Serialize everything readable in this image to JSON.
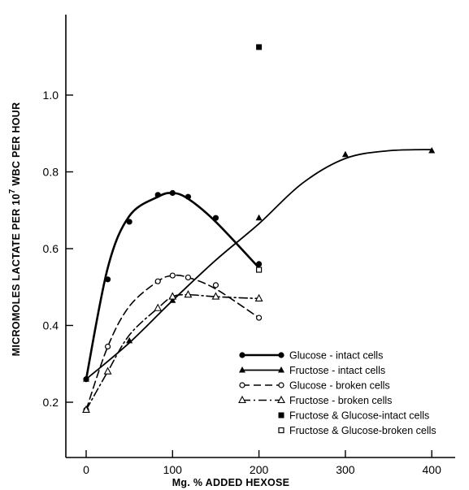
{
  "chart_data": {
    "type": "line",
    "title": "",
    "xlabel": "Mg. % ADDED HEXOSE",
    "ylabel": "MICROMOLES LACTATE PER 10",
    "ylabel_superscript": "7",
    "ylabel_tail": " WBC PER HOUR",
    "xlim": [
      -15,
      440
    ],
    "ylim": [
      0.13,
      1.15
    ],
    "x_ticks": [
      0,
      100,
      200,
      300,
      400
    ],
    "y_ticks": [
      0.2,
      0.4,
      0.6,
      0.8,
      1.0
    ],
    "x_tick_labels": [
      "0",
      "100",
      "200",
      "300",
      "400"
    ],
    "y_tick_labels": [
      "0.2",
      "0.4",
      "0.6",
      "0.8",
      "1.0"
    ],
    "grid": false,
    "legend_position": "bottom-right",
    "series": [
      {
        "name": "Glucose - intact cells",
        "marker": "filled-circle",
        "line": "solid-bold",
        "x": [
          0,
          25,
          50,
          83,
          100,
          118,
          150,
          200
        ],
        "y": [
          0.26,
          0.52,
          0.67,
          0.74,
          0.745,
          0.735,
          0.68,
          0.56
        ],
        "curve_x": [
          0,
          25,
          50,
          83,
          100,
          118,
          150,
          200
        ],
        "curve_y": [
          0.26,
          0.55,
          0.685,
          0.735,
          0.745,
          0.73,
          0.67,
          0.55
        ]
      },
      {
        "name": "Fructose - intact cells",
        "marker": "filled-triangle",
        "line": "solid",
        "x": [
          0,
          50,
          100,
          200,
          300,
          400
        ],
        "y": [
          0.26,
          0.36,
          0.465,
          0.68,
          0.845,
          0.855
        ],
        "curve_x": [
          0,
          50,
          100,
          150,
          200,
          250,
          300,
          350,
          400
        ],
        "curve_y": [
          0.26,
          0.355,
          0.465,
          0.57,
          0.665,
          0.77,
          0.835,
          0.855,
          0.858
        ]
      },
      {
        "name": "Glucose - broken cells",
        "marker": "open-circle",
        "line": "dashed",
        "x": [
          0,
          25,
          83,
          100,
          118,
          150,
          200
        ],
        "y": [
          0.18,
          0.345,
          0.515,
          0.53,
          0.525,
          0.505,
          0.42
        ],
        "curve_x": [
          0,
          25,
          50,
          83,
          100,
          118,
          150,
          200
        ],
        "curve_y": [
          0.18,
          0.345,
          0.45,
          0.515,
          0.53,
          0.525,
          0.495,
          0.42
        ]
      },
      {
        "name": "Fructose - broken cells",
        "marker": "open-triangle",
        "line": "dash-dot",
        "x": [
          0,
          25,
          83,
          100,
          118,
          150,
          200
        ],
        "y": [
          0.18,
          0.28,
          0.445,
          0.475,
          0.48,
          0.475,
          0.47
        ],
        "curve_x": [
          0,
          25,
          50,
          83,
          100,
          118,
          150,
          200
        ],
        "curve_y": [
          0.18,
          0.28,
          0.375,
          0.445,
          0.475,
          0.48,
          0.475,
          0.47
        ]
      },
      {
        "name": "Fructose & Glucose-intact cells",
        "marker": "filled-square",
        "line": "none",
        "x": [
          200
        ],
        "y": [
          1.125
        ]
      },
      {
        "name": "Fructose & Glucose-broken cells",
        "marker": "open-square",
        "line": "none",
        "x": [
          200
        ],
        "y": [
          0.545
        ]
      }
    ]
  }
}
